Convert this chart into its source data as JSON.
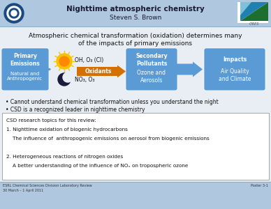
{
  "title_line1": "Nighttime atmospheric chemistry",
  "title_line2": "Steven S. Brown",
  "header_bg": "#afc8e0",
  "body_bg": "#e8eef4",
  "subtitle_line1": "Atmospheric chemical transformation (oxidation) determines many",
  "subtitle_line2": "of the impacts of primary emissions",
  "box1_title": "Primary\nEmissions",
  "box1_sub": "Natural and\nAnthropogenic",
  "oxidants_label": "Oxidants",
  "ox_text1": "OH, O₃ (Cl)",
  "ox_text2": "NO₃, O₃",
  "box3_title": "Secondary\nPollutants",
  "box3_sub": "Ozone and\nAerosols",
  "box4_title": "Impacts",
  "box4_sub": "Air Quality\nand Climate",
  "box_color": "#5b9bd5",
  "arrow_color": "#5b9bd5",
  "oxidant_arrow_color": "#d47000",
  "bullet1": "• Cannot understand chemical transformation unless you understand the night",
  "bullet2": "• CSD is a recognized leader in nighttime chemistry",
  "review_line1": "CSD research topics for this review:",
  "review_line2": "1. Nighttime oxidation of biogenic hydrocarbons",
  "review_line3": "    The influence of  anthropogenic emissions on aerosol from biogenic emissions",
  "review_line4": "",
  "review_line5": "2. Heterogeneous reactions of nitrogen oxides",
  "review_line6": "    A better understanding of the influence of NOₓ on tropospheric ozone",
  "footer_left1": "ESRL Chemical Sciences Division Laboratory Review",
  "footer_left2": "30 March – 1 April 2011",
  "footer_right": "Poster 3-1",
  "footer_bg": "#afc8e0",
  "sun_outer": "#f5c300",
  "sun_inner": "#ff8800",
  "moon_color": "#1a1a3a"
}
